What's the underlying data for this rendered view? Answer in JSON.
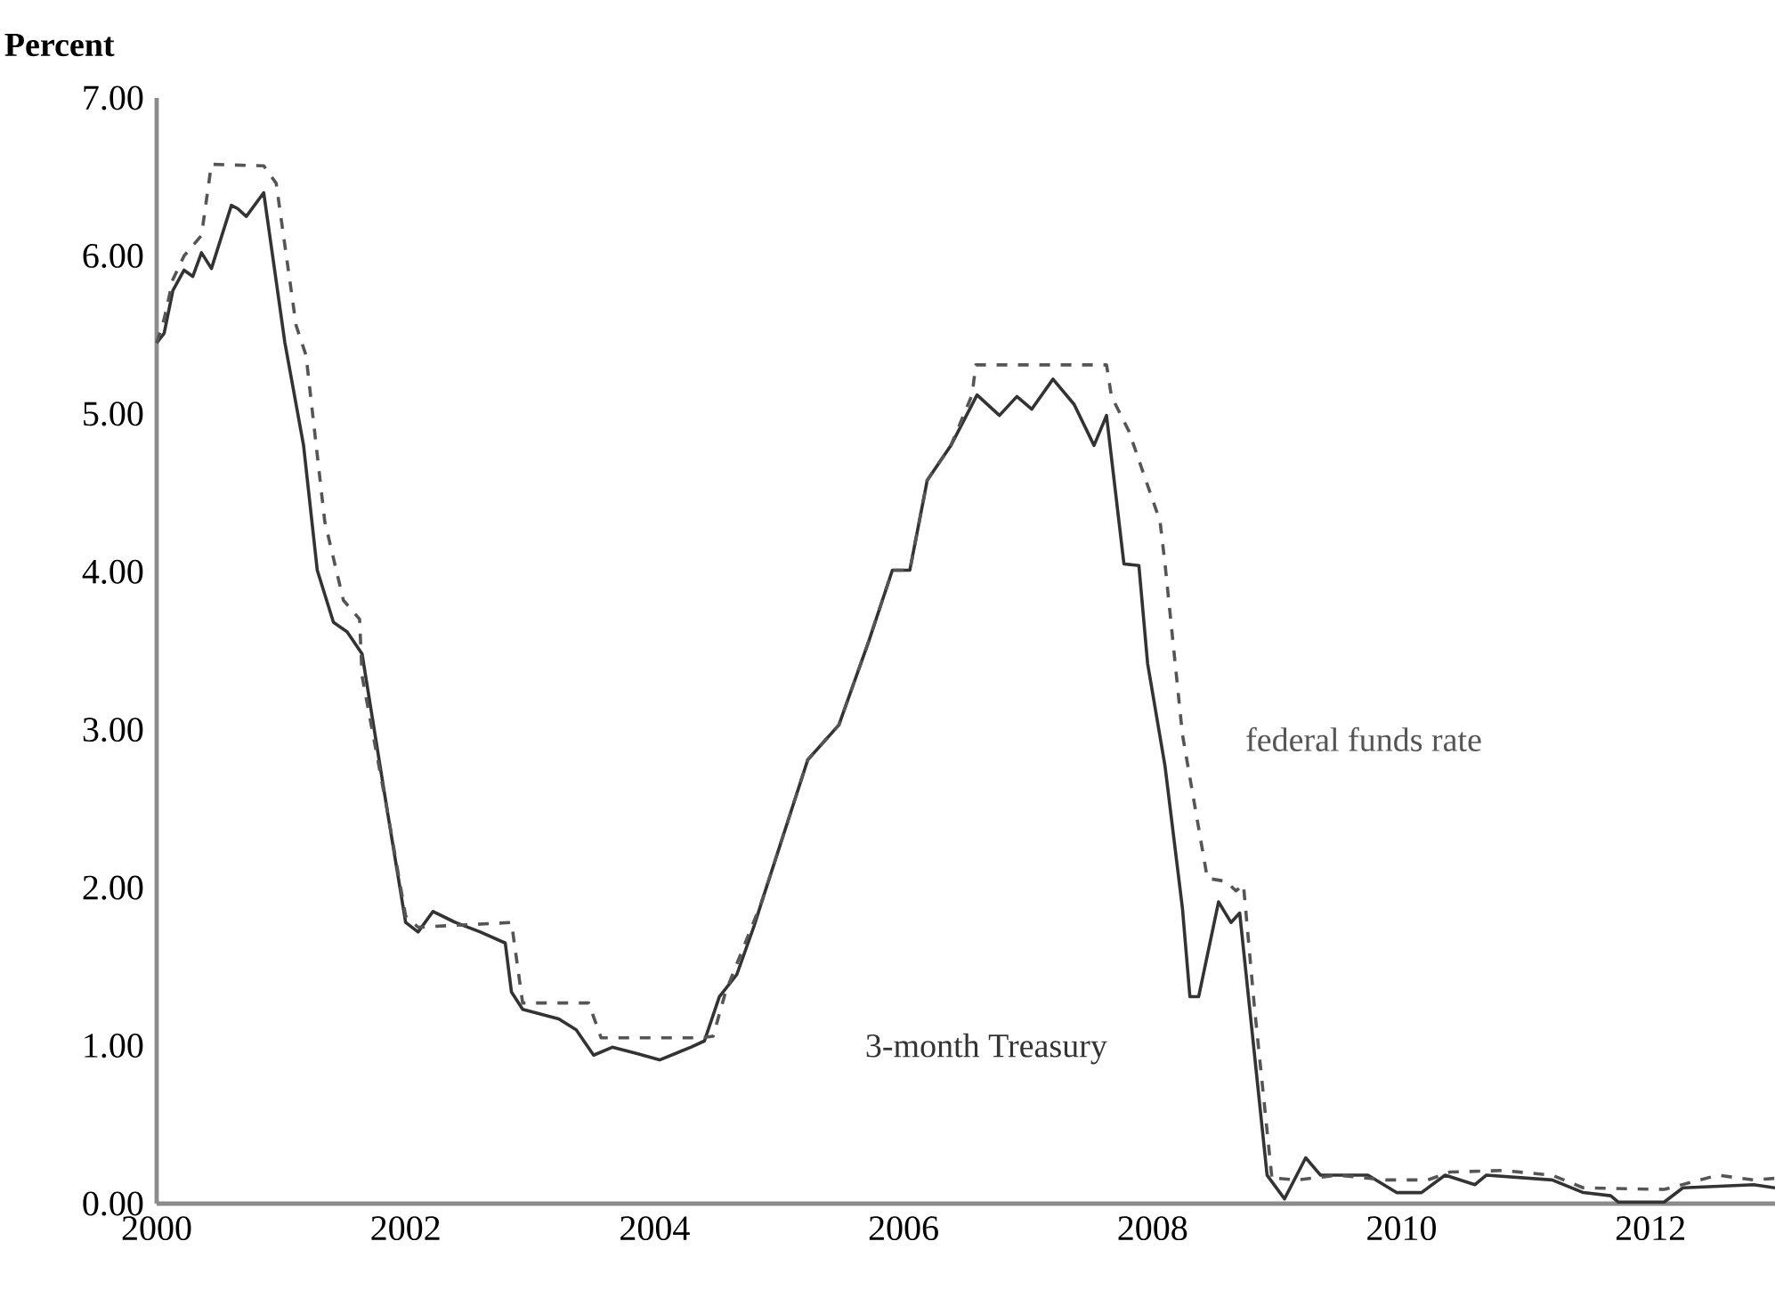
{
  "chart_data": {
    "type": "line",
    "ylabel": "Percent",
    "xlim": [
      2000,
      2013
    ],
    "ylim": [
      0,
      7
    ],
    "xticks": [
      2000,
      2002,
      2004,
      2006,
      2008,
      2010,
      2012
    ],
    "yticks": [
      {
        "value": 0,
        "label": "0.00"
      },
      {
        "value": 1,
        "label": "1.00"
      },
      {
        "value": 2,
        "label": "2.00"
      },
      {
        "value": 3,
        "label": "3.00"
      },
      {
        "value": 4,
        "label": "4.00"
      },
      {
        "value": 5,
        "label": "5.00"
      },
      {
        "value": 6,
        "label": "6.00"
      },
      {
        "value": 7,
        "label": "7.00"
      }
    ],
    "grid": false,
    "legend": false,
    "series": [
      {
        "name": "3-month Treasury",
        "color": "#333333",
        "line_style": "solid",
        "x": [
          2000.0,
          2000.06,
          2000.13,
          2000.22,
          2000.29,
          2000.36,
          2000.44,
          2000.6,
          2000.65,
          2000.72,
          2000.86,
          2001.03,
          2001.18,
          2001.29,
          2001.42,
          2001.53,
          2001.65,
          2001.85,
          2002.0,
          2002.1,
          2002.22,
          2002.4,
          2002.6,
          2002.8,
          2002.85,
          2002.94,
          2003.23,
          2003.37,
          2003.51,
          2003.66,
          2003.86,
          2004.04,
          2004.29,
          2004.4,
          2004.52,
          2004.66,
          2004.8,
          2004.86,
          2005.23,
          2005.48,
          2005.72,
          2005.91,
          2006.05,
          2006.19,
          2006.38,
          2006.59,
          2006.77,
          2006.91,
          2007.03,
          2007.2,
          2007.37,
          2007.53,
          2007.63,
          2007.77,
          2007.89,
          2007.96,
          2008.1,
          2008.24,
          2008.3,
          2008.37,
          2008.53,
          2008.63,
          2008.7,
          2008.92,
          2009.06,
          2009.23,
          2009.35,
          2009.73,
          2009.96,
          2010.16,
          2010.35,
          2010.59,
          2010.68,
          2011.21,
          2011.46,
          2011.68,
          2011.74,
          2012.11,
          2012.26,
          2012.83,
          2013.0
        ],
        "values": [
          5.45,
          5.51,
          5.78,
          5.91,
          5.87,
          6.02,
          5.92,
          6.32,
          6.3,
          6.25,
          6.4,
          5.45,
          4.8,
          4.01,
          3.68,
          3.62,
          3.48,
          2.5,
          1.78,
          1.72,
          1.85,
          1.78,
          1.72,
          1.65,
          1.34,
          1.23,
          1.17,
          1.1,
          0.94,
          0.99,
          0.95,
          0.91,
          0.99,
          1.03,
          1.31,
          1.45,
          1.76,
          1.91,
          2.81,
          3.03,
          3.56,
          4.01,
          4.01,
          4.58,
          4.8,
          5.12,
          4.99,
          5.11,
          5.03,
          5.22,
          5.06,
          4.8,
          4.99,
          4.05,
          4.04,
          3.42,
          2.77,
          1.87,
          1.31,
          1.31,
          1.91,
          1.78,
          1.84,
          0.18,
          0.03,
          0.29,
          0.18,
          0.18,
          0.07,
          0.07,
          0.18,
          0.12,
          0.18,
          0.15,
          0.07,
          0.05,
          0.01,
          0.01,
          0.1,
          0.12,
          0.1
        ]
      },
      {
        "name": "federal funds rate",
        "color": "#555555",
        "line_style": "dashed",
        "x": [
          2000.0,
          2000.06,
          2000.13,
          2000.22,
          2000.36,
          2000.44,
          2000.86,
          2000.96,
          2001.12,
          2001.2,
          2001.35,
          2001.5,
          2001.63,
          2001.65,
          2001.85,
          2002.0,
          2002.1,
          2002.85,
          2002.94,
          2003.47,
          2003.57,
          2004.37,
          2004.47,
          2004.57,
          2004.86,
          2005.23,
          2005.48,
          2005.72,
          2005.91,
          2006.05,
          2006.19,
          2006.38,
          2006.55,
          2006.58,
          2007.63,
          2007.67,
          2007.81,
          2008.06,
          2008.1,
          2008.24,
          2008.44,
          2008.59,
          2008.67,
          2008.73,
          2008.82,
          2008.96,
          2009.0,
          2009.16,
          2009.49,
          2009.88,
          2010.21,
          2010.39,
          2010.82,
          2011.21,
          2011.46,
          2012.11,
          2012.54,
          2012.83,
          2013.0
        ],
        "values": [
          5.45,
          5.6,
          5.85,
          6.0,
          6.13,
          6.58,
          6.57,
          6.46,
          5.56,
          5.37,
          4.32,
          3.82,
          3.7,
          3.34,
          2.5,
          1.82,
          1.75,
          1.78,
          1.27,
          1.27,
          1.05,
          1.05,
          1.06,
          1.34,
          1.91,
          2.81,
          3.03,
          3.56,
          4.01,
          4.01,
          4.58,
          4.8,
          5.12,
          5.31,
          5.31,
          5.11,
          4.89,
          4.32,
          4.05,
          2.97,
          2.06,
          2.04,
          1.98,
          2.02,
          1.23,
          0.15,
          0.16,
          0.15,
          0.18,
          0.15,
          0.15,
          0.2,
          0.21,
          0.18,
          0.1,
          0.09,
          0.18,
          0.15,
          0.16
        ]
      }
    ]
  }
}
